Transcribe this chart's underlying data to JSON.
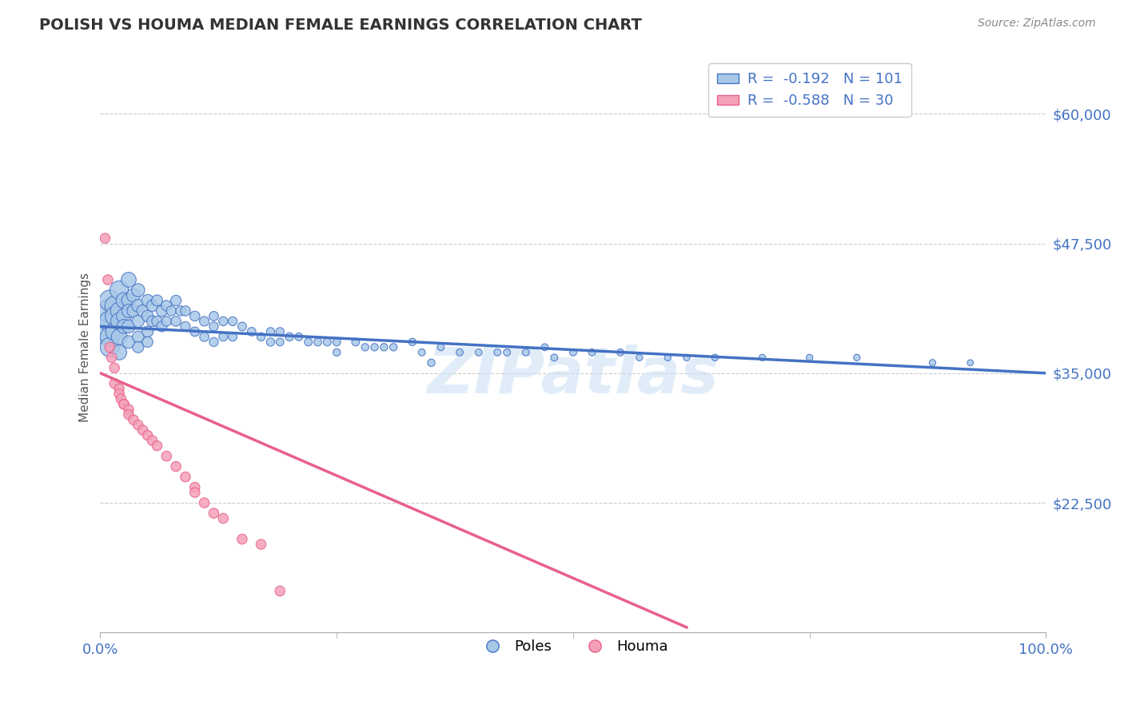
{
  "title": "POLISH VS HOUMA MEDIAN FEMALE EARNINGS CORRELATION CHART",
  "source": "Source: ZipAtlas.com",
  "ylabel": "Median Female Earnings",
  "xlim": [
    0.0,
    1.0
  ],
  "ylim": [
    10000,
    65000
  ],
  "yticks": [
    22500,
    35000,
    47500,
    60000
  ],
  "ytick_labels": [
    "$22,500",
    "$35,000",
    "$47,500",
    "$60,000"
  ],
  "xtick_labels": [
    "0.0%",
    "100.0%"
  ],
  "legend_r1": "-0.192",
  "legend_n1": "101",
  "legend_r2": "-0.588",
  "legend_n2": "30",
  "color_poles": "#a8c8e8",
  "color_houma": "#f4a0b8",
  "color_poles_line": "#4472c4",
  "color_houma_line": "#e8608a",
  "watermark": "ZIPatlas",
  "poles_line_x0": 0.0,
  "poles_line_y0": 39500,
  "poles_line_x1": 1.0,
  "poles_line_y1": 35000,
  "houma_line_x0": 0.0,
  "houma_line_y0": 35000,
  "houma_line_x1": 0.62,
  "houma_line_y1": 10500,
  "poles_x": [
    0.005,
    0.008,
    0.01,
    0.01,
    0.01,
    0.01,
    0.015,
    0.015,
    0.015,
    0.02,
    0.02,
    0.02,
    0.02,
    0.02,
    0.025,
    0.025,
    0.025,
    0.03,
    0.03,
    0.03,
    0.03,
    0.03,
    0.035,
    0.035,
    0.04,
    0.04,
    0.04,
    0.04,
    0.04,
    0.045,
    0.05,
    0.05,
    0.05,
    0.05,
    0.055,
    0.055,
    0.06,
    0.06,
    0.065,
    0.065,
    0.07,
    0.07,
    0.075,
    0.08,
    0.08,
    0.085,
    0.09,
    0.09,
    0.1,
    0.1,
    0.11,
    0.11,
    0.12,
    0.12,
    0.12,
    0.13,
    0.13,
    0.14,
    0.14,
    0.15,
    0.16,
    0.17,
    0.18,
    0.18,
    0.19,
    0.19,
    0.2,
    0.21,
    0.22,
    0.23,
    0.24,
    0.25,
    0.25,
    0.27,
    0.28,
    0.29,
    0.3,
    0.31,
    0.33,
    0.34,
    0.36,
    0.38,
    0.4,
    0.42,
    0.43,
    0.45,
    0.47,
    0.48,
    0.5,
    0.52,
    0.55,
    0.57,
    0.6,
    0.62,
    0.65,
    0.7,
    0.75,
    0.8,
    0.88,
    0.92,
    0.35
  ],
  "poles_y": [
    39000,
    41000,
    42000,
    40000,
    38500,
    37500,
    41500,
    40500,
    39000,
    43000,
    41000,
    40000,
    38500,
    37000,
    42000,
    40500,
    39500,
    44000,
    42000,
    41000,
    39500,
    38000,
    42500,
    41000,
    43000,
    41500,
    40000,
    38500,
    37500,
    41000,
    42000,
    40500,
    39000,
    38000,
    41500,
    40000,
    42000,
    40000,
    41000,
    39500,
    41500,
    40000,
    41000,
    42000,
    40000,
    41000,
    41000,
    39500,
    40500,
    39000,
    40000,
    38500,
    40500,
    39500,
    38000,
    40000,
    38500,
    40000,
    38500,
    39500,
    39000,
    38500,
    39000,
    38000,
    39000,
    38000,
    38500,
    38500,
    38000,
    38000,
    38000,
    38000,
    37000,
    38000,
    37500,
    37500,
    37500,
    37500,
    38000,
    37000,
    37500,
    37000,
    37000,
    37000,
    37000,
    37000,
    37500,
    36500,
    37000,
    37000,
    37000,
    36500,
    36500,
    36500,
    36500,
    36500,
    36500,
    36500,
    36000,
    36000,
    36000
  ],
  "poles_size": [
    500,
    400,
    350,
    350,
    300,
    300,
    300,
    280,
    250,
    280,
    250,
    230,
    200,
    180,
    200,
    180,
    160,
    180,
    160,
    150,
    140,
    130,
    150,
    130,
    140,
    130,
    120,
    110,
    100,
    120,
    120,
    110,
    100,
    90,
    110,
    100,
    100,
    90,
    100,
    90,
    90,
    80,
    80,
    90,
    80,
    80,
    80,
    75,
    80,
    70,
    75,
    70,
    70,
    65,
    65,
    65,
    60,
    65,
    60,
    60,
    60,
    55,
    55,
    55,
    55,
    50,
    55,
    50,
    50,
    50,
    50,
    50,
    45,
    50,
    45,
    45,
    45,
    45,
    45,
    40,
    40,
    40,
    40,
    40,
    40,
    40,
    40,
    40,
    40,
    40,
    40,
    35,
    35,
    35,
    35,
    35,
    35,
    35,
    35,
    30,
    45
  ],
  "houma_x": [
    0.005,
    0.008,
    0.01,
    0.012,
    0.015,
    0.015,
    0.02,
    0.02,
    0.022,
    0.025,
    0.025,
    0.03,
    0.03,
    0.035,
    0.04,
    0.045,
    0.05,
    0.055,
    0.06,
    0.07,
    0.08,
    0.09,
    0.1,
    0.1,
    0.11,
    0.12,
    0.13,
    0.15,
    0.17,
    0.19
  ],
  "houma_y": [
    48000,
    44000,
    37500,
    36500,
    35500,
    34000,
    33500,
    33000,
    32500,
    32000,
    32000,
    31500,
    31000,
    30500,
    30000,
    29500,
    29000,
    28500,
    28000,
    27000,
    26000,
    25000,
    24000,
    23500,
    22500,
    21500,
    21000,
    19000,
    18500,
    14000
  ],
  "houma_size": [
    80,
    80,
    80,
    80,
    80,
    80,
    80,
    80,
    80,
    80,
    80,
    80,
    80,
    80,
    80,
    80,
    80,
    80,
    80,
    80,
    80,
    80,
    80,
    80,
    80,
    80,
    80,
    80,
    80,
    80
  ]
}
